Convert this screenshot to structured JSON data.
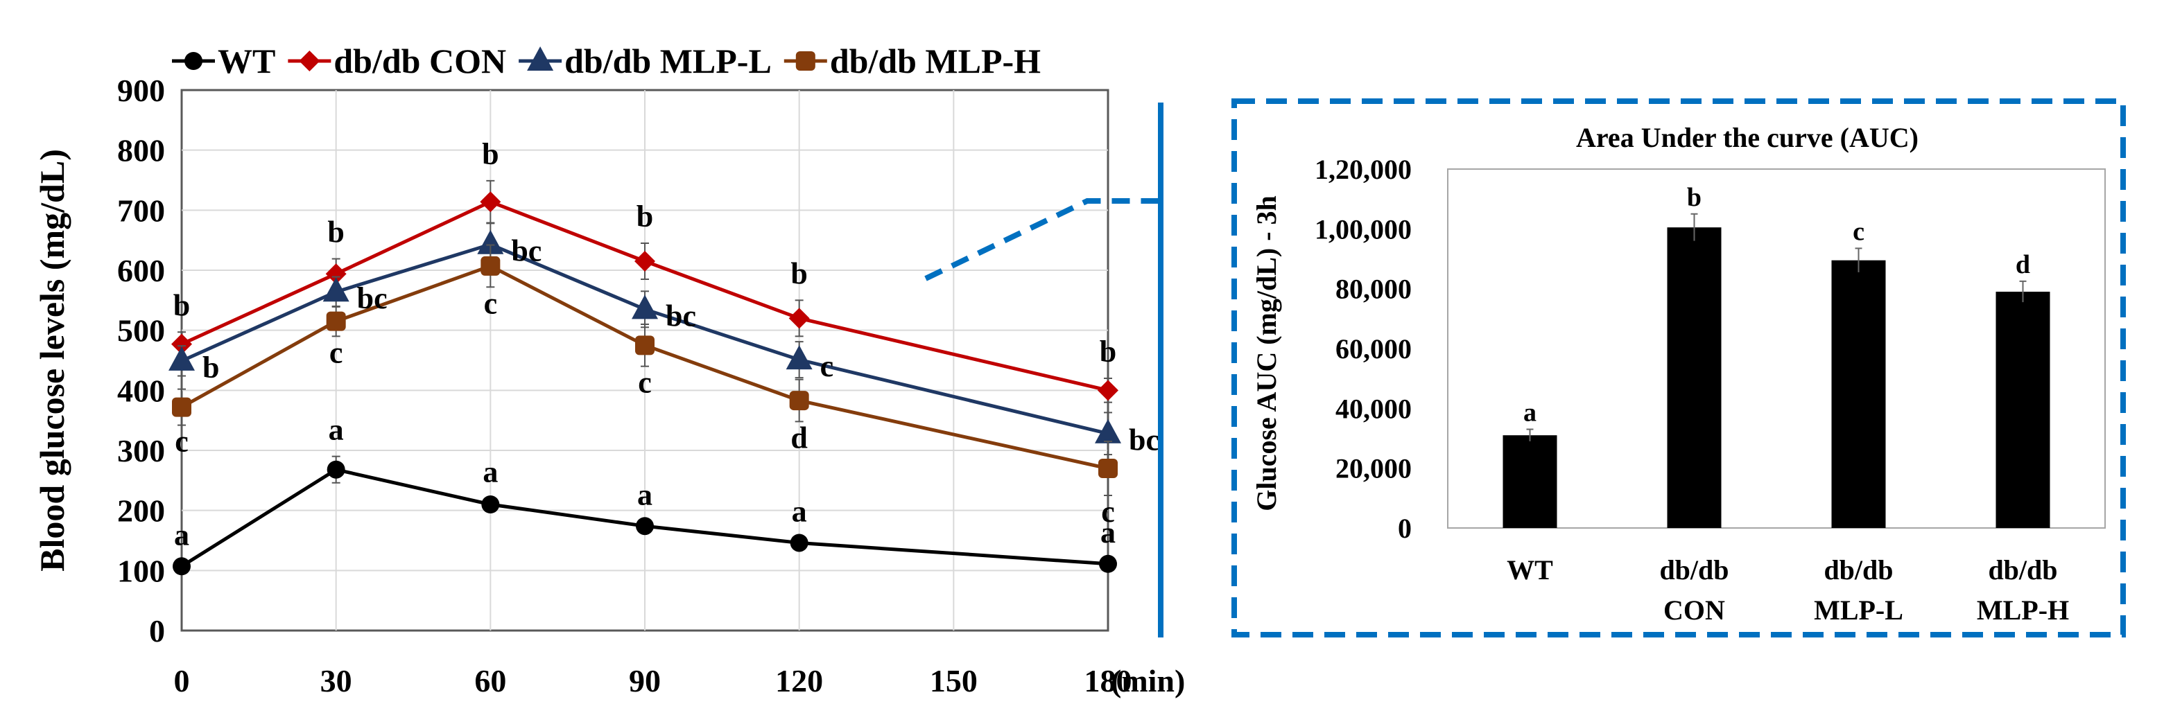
{
  "chart_data": [
    {
      "type": "line",
      "title": "",
      "xlabel": "(min)",
      "ylabel": "Blood glucose levels (mg/dL)",
      "x": [
        0,
        30,
        60,
        90,
        120,
        150,
        180
      ],
      "x_tick_labels": [
        "0",
        "30",
        "60",
        "90",
        "120",
        "150",
        "180"
      ],
      "y_tick_labels": [
        "0",
        "100",
        "200",
        "300",
        "400",
        "500",
        "600",
        "700",
        "800",
        "900"
      ],
      "xlim": [
        0,
        180
      ],
      "ylim": [
        0,
        900
      ],
      "grid": true,
      "legend_position": "top",
      "series": [
        {
          "name": "WT",
          "color": "#000000",
          "marker": "circle",
          "x": [
            0,
            30,
            60,
            90,
            120,
            180
          ],
          "values": [
            107,
            268,
            210,
            174,
            146,
            111
          ],
          "errors": [
            8,
            22,
            10,
            8,
            8,
            8
          ],
          "labels": [
            "a",
            "a",
            "a",
            "a",
            "a",
            "a"
          ]
        },
        {
          "name": "db/db CON",
          "color": "#C00000",
          "marker": "diamond",
          "x": [
            0,
            30,
            60,
            90,
            120,
            180
          ],
          "values": [
            477,
            594,
            714,
            615,
            520,
            400
          ],
          "errors": [
            20,
            25,
            35,
            30,
            30,
            20
          ],
          "labels": [
            "b",
            "b",
            "b",
            "b",
            "b",
            "b"
          ]
        },
        {
          "name": "db/db MLP-L",
          "color": "#1F3864",
          "marker": "triangle",
          "x": [
            0,
            30,
            60,
            90,
            120,
            180
          ],
          "values": [
            449,
            564,
            643,
            535,
            451,
            328
          ],
          "errors": [
            25,
            25,
            35,
            30,
            30,
            35
          ],
          "labels": [
            "b",
            "bc",
            "bc",
            "bc",
            "c",
            "bc"
          ]
        },
        {
          "name": "db/db MLP-H",
          "color": "#843C0C",
          "marker": "square",
          "x": [
            0,
            30,
            60,
            90,
            120,
            180
          ],
          "values": [
            372,
            515,
            607,
            475,
            383,
            270
          ],
          "errors": [
            30,
            25,
            35,
            35,
            35,
            45
          ],
          "labels": [
            "c",
            "c",
            "c",
            "c",
            "d",
            "c"
          ]
        }
      ]
    },
    {
      "type": "bar",
      "title": "Area Under the curve (AUC)",
      "xlabel": "",
      "ylabel": "Glucose AUC (mg/dL) - 3h",
      "categories": [
        "WT",
        "db/db CON",
        "db/db MLP-L",
        "db/db MLP-H"
      ],
      "category_lines": [
        [
          "WT"
        ],
        [
          "db/db",
          "CON"
        ],
        [
          "db/db",
          "MLP-L"
        ],
        [
          "db/db",
          "MLP-H"
        ]
      ],
      "values": [
        31000,
        100500,
        89500,
        79000
      ],
      "errors": [
        2000,
        4500,
        4000,
        3500
      ],
      "labels": [
        "a",
        "b",
        "c",
        "d"
      ],
      "ylim": [
        0,
        120000
      ],
      "y_ticks": [
        0,
        20000,
        40000,
        60000,
        80000,
        100000,
        120000
      ],
      "y_tick_labels": [
        "0",
        "20,000",
        "40,000",
        "60,000",
        "80,000",
        "1,00,000",
        "1,20,000"
      ],
      "bar_color": "#000000",
      "grid": false
    }
  ],
  "colors": {
    "inset_frame": "#0070C0",
    "grid": "#D9D9D9"
  }
}
